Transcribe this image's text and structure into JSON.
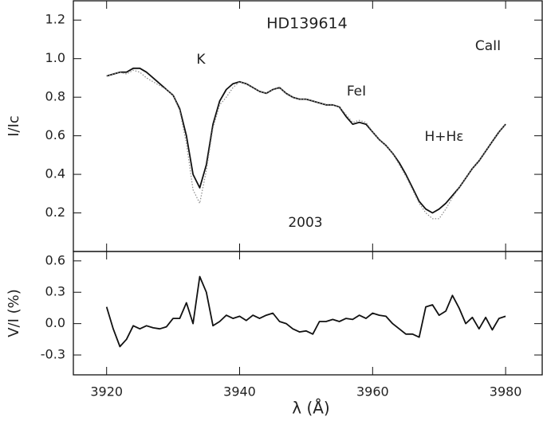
{
  "chart_data": [
    {
      "type": "line",
      "title": "HD139614",
      "annotations": [
        "K",
        "CaII",
        "FeI",
        "H+Hε",
        "2003"
      ],
      "y_label": "I/Ic",
      "x": [
        3920,
        3921,
        3922,
        3923,
        3924,
        3925,
        3926,
        3927,
        3928,
        3929,
        3930,
        3931,
        3932,
        3933,
        3934,
        3935,
        3936,
        3937,
        3938,
        3939,
        3940,
        3941,
        3942,
        3943,
        3944,
        3945,
        3946,
        3947,
        3948,
        3949,
        3950,
        3951,
        3952,
        3953,
        3954,
        3955,
        3956,
        3957,
        3958,
        3959,
        3960,
        3961,
        3962,
        3963,
        3964,
        3965,
        3966,
        3967,
        3968,
        3969,
        3970,
        3971,
        3972,
        3973,
        3974,
        3975,
        3976,
        3977,
        3978,
        3979,
        3980
      ],
      "series": [
        {
          "color": "#111111",
          "style": "solid",
          "values": [
            0.91,
            0.92,
            0.93,
            0.93,
            0.95,
            0.95,
            0.93,
            0.9,
            0.87,
            0.84,
            0.81,
            0.74,
            0.6,
            0.4,
            0.33,
            0.45,
            0.66,
            0.78,
            0.84,
            0.87,
            0.88,
            0.87,
            0.85,
            0.83,
            0.82,
            0.84,
            0.85,
            0.82,
            0.8,
            0.79,
            0.79,
            0.78,
            0.77,
            0.76,
            0.76,
            0.75,
            0.7,
            0.66,
            0.67,
            0.66,
            0.62,
            0.58,
            0.55,
            0.51,
            0.46,
            0.4,
            0.33,
            0.26,
            0.22,
            0.2,
            0.22,
            0.25,
            0.29,
            0.33,
            0.38,
            0.43,
            0.47,
            0.52,
            0.57,
            0.62,
            0.66
          ]
        },
        {
          "color": "#888888",
          "style": "dotted",
          "values": [
            0.91,
            0.92,
            0.93,
            0.92,
            0.94,
            0.93,
            0.9,
            0.88,
            0.86,
            0.84,
            0.81,
            0.73,
            0.56,
            0.32,
            0.25,
            0.42,
            0.64,
            0.76,
            0.8,
            0.85,
            0.88,
            0.87,
            0.85,
            0.83,
            0.82,
            0.84,
            0.85,
            0.82,
            0.8,
            0.79,
            0.79,
            0.78,
            0.77,
            0.76,
            0.76,
            0.75,
            0.71,
            0.67,
            0.68,
            0.67,
            0.62,
            0.58,
            0.55,
            0.51,
            0.45,
            0.39,
            0.32,
            0.25,
            0.2,
            0.17,
            0.17,
            0.22,
            0.28,
            0.33,
            0.38,
            0.43,
            0.47,
            0.52,
            0.57,
            0.62,
            0.66
          ]
        }
      ],
      "xlim": [
        3915,
        3985.5
      ],
      "xticks": [
        3920,
        3940,
        3960,
        3980
      ],
      "ylim": [
        0,
        1.3
      ],
      "yticks": [
        0.2,
        0.4,
        0.6,
        0.8,
        {
          "value": 1,
          "label": "1.0"
        },
        1.2
      ]
    },
    {
      "type": "line",
      "y_label": "V/I (%)",
      "x_label": "λ (Å)",
      "x": [
        3920,
        3921,
        3922,
        3923,
        3924,
        3925,
        3926,
        3927,
        3928,
        3929,
        3930,
        3931,
        3932,
        3933,
        3934,
        3935,
        3936,
        3937,
        3938,
        3939,
        3940,
        3941,
        3942,
        3943,
        3944,
        3945,
        3946,
        3947,
        3948,
        3949,
        3950,
        3951,
        3952,
        3953,
        3954,
        3955,
        3956,
        3957,
        3958,
        3959,
        3960,
        3961,
        3962,
        3963,
        3964,
        3965,
        3966,
        3967,
        3968,
        3969,
        3970,
        3971,
        3972,
        3973,
        3974,
        3975,
        3976,
        3977,
        3978,
        3979,
        3980
      ],
      "series": [
        {
          "color": "#111111",
          "style": "solid",
          "values": [
            0.16,
            -0.05,
            -0.22,
            -0.15,
            -0.02,
            -0.05,
            -0.02,
            -0.04,
            -0.05,
            -0.03,
            0.05,
            0.05,
            0.2,
            0.0,
            0.45,
            0.3,
            -0.02,
            0.02,
            0.08,
            0.05,
            0.07,
            0.03,
            0.08,
            0.05,
            0.08,
            0.1,
            0.02,
            0.0,
            -0.05,
            -0.08,
            -0.07,
            -0.1,
            0.02,
            0.02,
            0.04,
            0.02,
            0.05,
            0.04,
            0.08,
            0.05,
            0.1,
            0.08,
            0.07,
            0.0,
            -0.05,
            -0.1,
            -0.1,
            -0.13,
            0.16,
            0.18,
            0.08,
            0.12,
            0.27,
            0.15,
            0.0,
            0.06,
            -0.05,
            0.06,
            -0.06,
            0.05,
            0.07
          ]
        }
      ],
      "xlim": [
        3915,
        3985.5
      ],
      "xticks": [
        3920,
        3940,
        3960,
        3980
      ],
      "ylim": [
        -0.49,
        0.69
      ],
      "yticks": [
        0.6,
        0.3,
        {
          "value": 0,
          "label": "0.0"
        },
        -0.3
      ]
    }
  ]
}
